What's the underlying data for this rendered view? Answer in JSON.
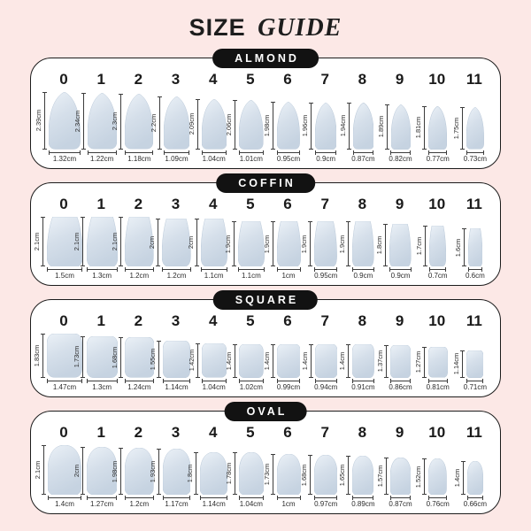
{
  "title": {
    "size_word": "SIZE",
    "guide_word": "GUIDE"
  },
  "colors": {
    "background": "#fce8e6",
    "pill_background": "#121212",
    "pill_text": "#ffffff",
    "card_background": "#ffffff",
    "card_border": "#1c1c1c",
    "nail_light": "#ebf1f7",
    "nail_mid": "#d5dfea",
    "nail_dark": "#c6d3e1",
    "measure_line": "#3c3c3c"
  },
  "sections": [
    {
      "label": "ALMOND",
      "shape": "almond",
      "sizes": [
        {
          "size": "0",
          "height": "2.39cm",
          "width": "1.32cm"
        },
        {
          "size": "1",
          "height": "2.34cm",
          "width": "1.22cm"
        },
        {
          "size": "2",
          "height": "2.3cm",
          "width": "1.18cm"
        },
        {
          "size": "3",
          "height": "2.2cm",
          "width": "1.09cm"
        },
        {
          "size": "4",
          "height": "2.09cm",
          "width": "1.04cm"
        },
        {
          "size": "5",
          "height": "2.06cm",
          "width": "1.01cm"
        },
        {
          "size": "6",
          "height": "1.98cm",
          "width": "0.95cm"
        },
        {
          "size": "7",
          "height": "1.96cm",
          "width": "0.9cm"
        },
        {
          "size": "8",
          "height": "1.94cm",
          "width": "0.87cm"
        },
        {
          "size": "9",
          "height": "1.89cm",
          "width": "0.82cm"
        },
        {
          "size": "10",
          "height": "1.81cm",
          "width": "0.77cm"
        },
        {
          "size": "11",
          "height": "1.75cm",
          "width": "0.73cm"
        }
      ]
    },
    {
      "label": "COFFIN",
      "shape": "coffin",
      "sizes": [
        {
          "size": "0",
          "height": "2.1cm",
          "width": "1.5cm"
        },
        {
          "size": "1",
          "height": "2.1cm",
          "width": "1.3cm"
        },
        {
          "size": "2",
          "height": "2.1cm",
          "width": "1.2cm"
        },
        {
          "size": "3",
          "height": "2cm",
          "width": "1.2cm"
        },
        {
          "size": "4",
          "height": "2cm",
          "width": "1.1cm"
        },
        {
          "size": "5",
          "height": "1.9cm",
          "width": "1.1cm"
        },
        {
          "size": "6",
          "height": "1.9cm",
          "width": "1cm"
        },
        {
          "size": "7",
          "height": "1.9cm",
          "width": "0.95cm"
        },
        {
          "size": "8",
          "height": "1.9cm",
          "width": "0.9cm"
        },
        {
          "size": "9",
          "height": "1.8cm",
          "width": "0.9cm"
        },
        {
          "size": "10",
          "height": "1.7cm",
          "width": "0.7cm"
        },
        {
          "size": "11",
          "height": "1.6cm",
          "width": "0.6cm"
        }
      ]
    },
    {
      "label": "SQUARE",
      "shape": "square",
      "sizes": [
        {
          "size": "0",
          "height": "1.83cm",
          "width": "1.47cm"
        },
        {
          "size": "1",
          "height": "1.73cm",
          "width": "1.3cm"
        },
        {
          "size": "2",
          "height": "1.68cm",
          "width": "1.24cm"
        },
        {
          "size": "3",
          "height": "1.55cm",
          "width": "1.14cm"
        },
        {
          "size": "4",
          "height": "1.42cm",
          "width": "1.04cm"
        },
        {
          "size": "5",
          "height": "1.4cm",
          "width": "1.02cm"
        },
        {
          "size": "6",
          "height": "1.4cm",
          "width": "0.99cm"
        },
        {
          "size": "7",
          "height": "1.4cm",
          "width": "0.94cm"
        },
        {
          "size": "8",
          "height": "1.4cm",
          "width": "0.91cm"
        },
        {
          "size": "9",
          "height": "1.37cm",
          "width": "0.86cm"
        },
        {
          "size": "10",
          "height": "1.27cm",
          "width": "0.81cm"
        },
        {
          "size": "11",
          "height": "1.14cm",
          "width": "0.71cm"
        }
      ]
    },
    {
      "label": "OVAL",
      "shape": "oval",
      "sizes": [
        {
          "size": "0",
          "height": "2.1cm",
          "width": "1.4cm"
        },
        {
          "size": "1",
          "height": "2cm",
          "width": "1.27cm"
        },
        {
          "size": "2",
          "height": "1.98cm",
          "width": "1.2cm"
        },
        {
          "size": "3",
          "height": "1.93cm",
          "width": "1.17cm"
        },
        {
          "size": "4",
          "height": "1.8cm",
          "width": "1.14cm"
        },
        {
          "size": "5",
          "height": "1.78cm",
          "width": "1.04cm"
        },
        {
          "size": "6",
          "height": "1.73cm",
          "width": "1cm"
        },
        {
          "size": "7",
          "height": "1.68cm",
          "width": "0.97cm"
        },
        {
          "size": "8",
          "height": "1.65cm",
          "width": "0.89cm"
        },
        {
          "size": "9",
          "height": "1.57cm",
          "width": "0.87cm"
        },
        {
          "size": "10",
          "height": "1.52cm",
          "width": "0.76cm"
        },
        {
          "size": "11",
          "height": "1.4cm",
          "width": "0.66cm"
        }
      ]
    }
  ]
}
